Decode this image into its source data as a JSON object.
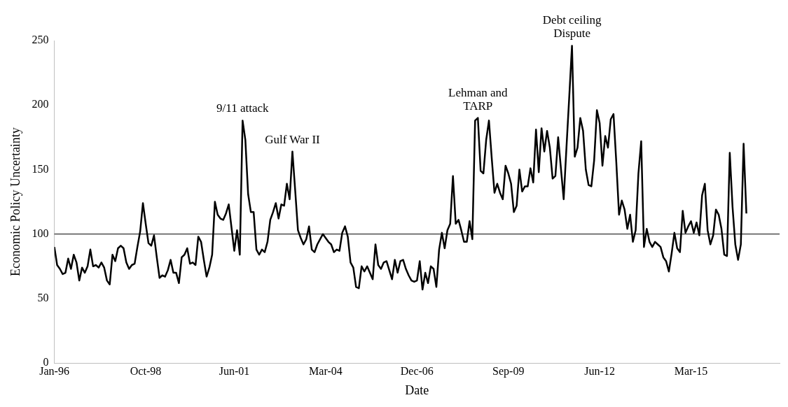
{
  "chart_data": {
    "type": "line",
    "xlabel": "Date",
    "ylabel": "Economic Policy Uncertainty",
    "x": [
      "1996-01",
      "1996-02",
      "1996-03",
      "1996-04",
      "1996-05",
      "1996-06",
      "1996-07",
      "1996-08",
      "1996-09",
      "1996-10",
      "1996-11",
      "1996-12",
      "1997-01",
      "1997-02",
      "1997-03",
      "1997-04",
      "1997-05",
      "1997-06",
      "1997-07",
      "1997-08",
      "1997-09",
      "1997-10",
      "1997-11",
      "1997-12",
      "1998-01",
      "1998-02",
      "1998-03",
      "1998-04",
      "1998-05",
      "1998-06",
      "1998-07",
      "1998-08",
      "1998-09",
      "1998-10",
      "1998-11",
      "1998-12",
      "1999-01",
      "1999-02",
      "1999-03",
      "1999-04",
      "1999-05",
      "1999-06",
      "1999-07",
      "1999-08",
      "1999-09",
      "1999-10",
      "1999-11",
      "1999-12",
      "2000-01",
      "2000-02",
      "2000-03",
      "2000-04",
      "2000-05",
      "2000-06",
      "2000-07",
      "2000-08",
      "2000-09",
      "2000-10",
      "2000-11",
      "2000-12",
      "2001-01",
      "2001-02",
      "2001-03",
      "2001-04",
      "2001-05",
      "2001-06",
      "2001-07",
      "2001-08",
      "2001-09",
      "2001-10",
      "2001-11",
      "2001-12",
      "2002-01",
      "2002-02",
      "2002-03",
      "2002-04",
      "2002-05",
      "2002-06",
      "2002-07",
      "2002-08",
      "2002-09",
      "2002-10",
      "2002-11",
      "2002-12",
      "2003-01",
      "2003-02",
      "2003-03",
      "2003-04",
      "2003-05",
      "2003-06",
      "2003-07",
      "2003-08",
      "2003-09",
      "2003-10",
      "2003-11",
      "2003-12",
      "2004-01",
      "2004-02",
      "2004-03",
      "2004-04",
      "2004-05",
      "2004-06",
      "2004-07",
      "2004-08",
      "2004-09",
      "2004-10",
      "2004-11",
      "2004-12",
      "2005-01",
      "2005-02",
      "2005-03",
      "2005-04",
      "2005-05",
      "2005-06",
      "2005-07",
      "2005-08",
      "2005-09",
      "2005-10",
      "2005-11",
      "2005-12",
      "2006-01",
      "2006-02",
      "2006-03",
      "2006-04",
      "2006-05",
      "2006-06",
      "2006-07",
      "2006-08",
      "2006-09",
      "2006-10",
      "2006-11",
      "2006-12",
      "2007-01",
      "2007-02",
      "2007-03",
      "2007-04",
      "2007-05",
      "2007-06",
      "2007-07",
      "2007-08",
      "2007-09",
      "2007-10",
      "2007-11",
      "2007-12",
      "2008-01",
      "2008-02",
      "2008-03",
      "2008-04",
      "2008-05",
      "2008-06",
      "2008-07",
      "2008-08",
      "2008-09",
      "2008-10",
      "2008-11",
      "2008-12",
      "2009-01",
      "2009-02",
      "2009-03",
      "2009-04",
      "2009-05",
      "2009-06",
      "2009-07",
      "2009-08",
      "2009-09",
      "2009-10",
      "2009-11",
      "2009-12",
      "2010-01",
      "2010-02",
      "2010-03",
      "2010-04",
      "2010-05",
      "2010-06",
      "2010-07",
      "2010-08",
      "2010-09",
      "2010-10",
      "2010-11",
      "2010-12",
      "2011-01",
      "2011-02",
      "2011-03",
      "2011-04",
      "2011-05",
      "2011-06",
      "2011-07",
      "2011-08",
      "2011-09",
      "2011-10",
      "2011-11",
      "2011-12",
      "2012-01",
      "2012-02",
      "2012-03",
      "2012-04",
      "2012-05",
      "2012-06",
      "2012-07",
      "2012-08",
      "2012-09",
      "2012-10",
      "2012-11",
      "2012-12",
      "2013-01",
      "2013-02",
      "2013-03",
      "2013-04",
      "2013-05",
      "2013-06",
      "2013-07",
      "2013-08",
      "2013-09",
      "2013-10",
      "2013-11",
      "2013-12",
      "2014-01",
      "2014-02",
      "2014-03",
      "2014-04",
      "2014-05",
      "2014-06",
      "2014-07",
      "2014-08",
      "2014-09",
      "2014-10",
      "2014-11",
      "2014-12",
      "2015-01",
      "2015-02",
      "2015-03",
      "2015-04",
      "2015-05",
      "2015-06",
      "2015-07",
      "2015-08",
      "2015-09",
      "2015-10",
      "2015-11",
      "2015-12",
      "2016-01",
      "2016-02",
      "2016-03",
      "2016-04",
      "2016-05",
      "2016-06",
      "2016-07",
      "2016-08",
      "2016-09",
      "2016-10",
      "2016-11"
    ],
    "series": [
      {
        "color": "#000000",
        "values": [
          90,
          76,
          73,
          69,
          70,
          81,
          73,
          84,
          78,
          64,
          74,
          70,
          75,
          88,
          75,
          76,
          74,
          78,
          74,
          64,
          61,
          84,
          79,
          89,
          91,
          89,
          78,
          73,
          76,
          77,
          90,
          102,
          124,
          108,
          93,
          91,
          99,
          82,
          66,
          68,
          67,
          72,
          80,
          70,
          70,
          62,
          82,
          84,
          89,
          77,
          78,
          76,
          98,
          94,
          80,
          67,
          74,
          84,
          125,
          115,
          112,
          111,
          116,
          123,
          105,
          87,
          103,
          84,
          188,
          173,
          131,
          117,
          117,
          88,
          84,
          88,
          86,
          94,
          111,
          117,
          124,
          112,
          123,
          122,
          139,
          127,
          164,
          134,
          103,
          97,
          92,
          96,
          106,
          88,
          86,
          92,
          96,
          100,
          97,
          94,
          92,
          86,
          88,
          87,
          101,
          106,
          98,
          78,
          74,
          59,
          58,
          75,
          71,
          75,
          70,
          65,
          92,
          76,
          73,
          78,
          79,
          72,
          65,
          80,
          70,
          79,
          80,
          73,
          68,
          64,
          63,
          64,
          79,
          57,
          70,
          62,
          75,
          73,
          59,
          88,
          101,
          89,
          103,
          108,
          145,
          108,
          111,
          103,
          94,
          94,
          110,
          96,
          188,
          190,
          149,
          147,
          173,
          188,
          159,
          132,
          139,
          132,
          127,
          153,
          147,
          139,
          117,
          122,
          150,
          133,
          137,
          137,
          151,
          140,
          181,
          148,
          182,
          164,
          180,
          167,
          143,
          145,
          175,
          151,
          127,
          167,
          206,
          246,
          160,
          167,
          190,
          180,
          150,
          138,
          137,
          157,
          196,
          186,
          153,
          176,
          167,
          189,
          193,
          156,
          115,
          126,
          119,
          104,
          115,
          94,
          103,
          147,
          172,
          90,
          104,
          94,
          90,
          94,
          92,
          90,
          82,
          79,
          71,
          85,
          101,
          89,
          86,
          118,
          101,
          106,
          110,
          101,
          109,
          99,
          130,
          139,
          103,
          92,
          99,
          119,
          115,
          104,
          84,
          83,
          163,
          121,
          92,
          80,
          92,
          170,
          116
        ]
      }
    ],
    "xlim": [
      "1996-01",
      "2017-11"
    ],
    "xticks": [
      {
        "value": "1996-01",
        "label": "Jan-96"
      },
      {
        "value": "1998-10",
        "label": "Oct-98"
      },
      {
        "value": "2001-06",
        "label": "Jun-01"
      },
      {
        "value": "2004-03",
        "label": "Mar-04"
      },
      {
        "value": "2006-12",
        "label": "Dec-06"
      },
      {
        "value": "2009-09",
        "label": "Sep-09"
      },
      {
        "value": "2012-06",
        "label": "Jun-12"
      },
      {
        "value": "2015-03",
        "label": "Mar-15"
      }
    ],
    "ylim": [
      0,
      250
    ],
    "yticks": [
      0,
      50,
      100,
      150,
      200,
      250
    ],
    "ref_lines": [
      {
        "axis": "y",
        "value": 100,
        "color": "#000000"
      }
    ],
    "annotations": [
      {
        "text": "9/11 attack",
        "x": "2001-09",
        "y": 188
      },
      {
        "text": "Gulf War II",
        "x": "2003-03",
        "y": 164
      },
      {
        "text": "Lehman and\nTARP",
        "x": "2008-10",
        "y": 190
      },
      {
        "text": "Debt ceiling\nDispute",
        "x": "2011-08",
        "y": 246
      }
    ],
    "grid": false,
    "legend": false,
    "marker": "none",
    "line_style": "solid"
  }
}
